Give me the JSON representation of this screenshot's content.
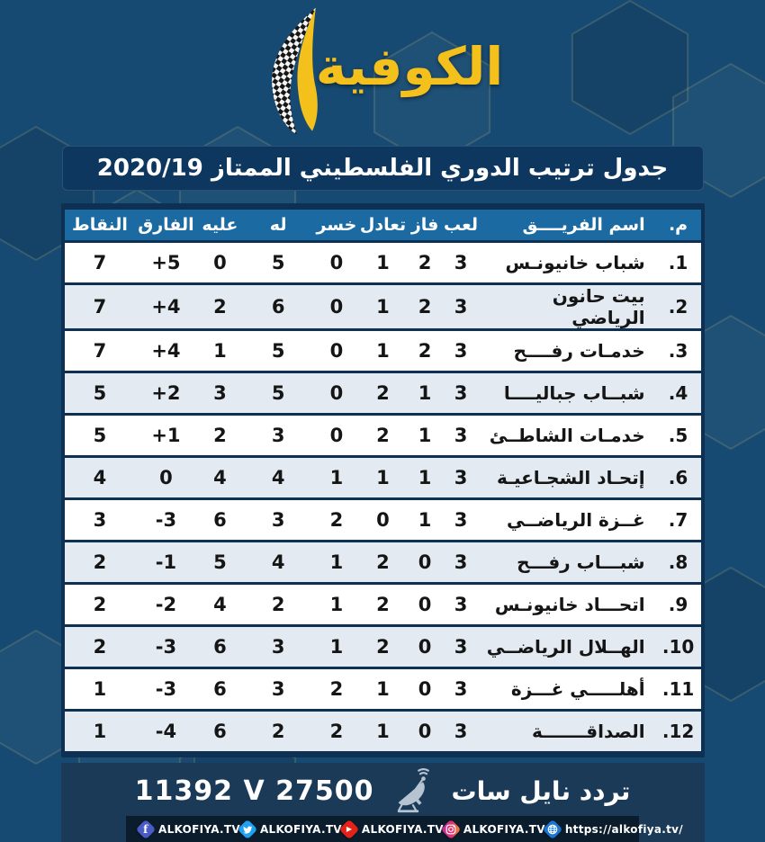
{
  "brand": {
    "logo_text": "الكوفية"
  },
  "chart_data": {
    "type": "table",
    "title": "جدول ترتيب الدوري الفلسطيني الممتاز 2020/19",
    "columns": [
      "م.",
      "اسم الفريــــق",
      "لعب",
      "فاز",
      "تعادل",
      "خسر",
      "له",
      "عليه",
      "الفارق",
      "النقاط"
    ],
    "rows": [
      [
        "1.",
        "شباب خانيونـس",
        "3",
        "2",
        "1",
        "0",
        "5",
        "0",
        "+5",
        "7"
      ],
      [
        "2.",
        "بيت حانون الرياضي",
        "3",
        "2",
        "1",
        "0",
        "6",
        "2",
        "+4",
        "7"
      ],
      [
        "3.",
        "خدمـات رفــــح",
        "3",
        "2",
        "1",
        "0",
        "5",
        "1",
        "+4",
        "7"
      ],
      [
        "4.",
        "شبــاب جباليــــا",
        "3",
        "1",
        "2",
        "0",
        "5",
        "3",
        "+2",
        "5"
      ],
      [
        "5.",
        "خدمـات الشاطــئ",
        "3",
        "1",
        "2",
        "0",
        "3",
        "2",
        "+1",
        "5"
      ],
      [
        "6.",
        "إتحـاد الشجـاعيـة",
        "3",
        "1",
        "1",
        "1",
        "4",
        "4",
        "0",
        "4"
      ],
      [
        "7.",
        "غــزة الرياضــي",
        "3",
        "1",
        "0",
        "2",
        "3",
        "6",
        "-3",
        "3"
      ],
      [
        "8.",
        "شبـــاب رفـــح",
        "3",
        "0",
        "2",
        "1",
        "4",
        "5",
        "-1",
        "2"
      ],
      [
        "9.",
        "اتحـــاد خانيونـس",
        "3",
        "0",
        "2",
        "1",
        "2",
        "4",
        "-2",
        "2"
      ],
      [
        "10.",
        "الهــلال الرياضــي",
        "3",
        "0",
        "2",
        "1",
        "3",
        "6",
        "-3",
        "2"
      ],
      [
        "11.",
        "أهلـــــي غـــزة",
        "3",
        "0",
        "1",
        "2",
        "3",
        "6",
        "-3",
        "1"
      ],
      [
        "12.",
        "الصداقـــــــة",
        "3",
        "0",
        "1",
        "2",
        "2",
        "6",
        "-4",
        "1"
      ]
    ]
  },
  "footer": {
    "frequency_label": "تردد نايل سات",
    "frequency_value": "11392 V 27500",
    "satellite_icon": "satellite-dish-icon"
  },
  "social": {
    "items": [
      {
        "icon": "facebook-icon",
        "label": "ALKOFIYA.TV"
      },
      {
        "icon": "twitter-icon",
        "label": "ALKOFIYA.TV"
      },
      {
        "icon": "youtube-icon",
        "label": "ALKOFIYA.TV"
      },
      {
        "icon": "instagram-icon",
        "label": "ALKOFIYA.TV"
      },
      {
        "icon": "globe-icon",
        "label": "https://alkofiya.tv/"
      }
    ]
  },
  "colors": {
    "background": "#174a72",
    "title_bar": "#0e3760",
    "table_header": "#1b6aa2",
    "row_odd": "#ffffff",
    "row_even": "#e3eaf1",
    "footer_panel": "#1a3a57",
    "social_bar": "#0b1c2c",
    "logo_yellow": "#f3c01c"
  }
}
